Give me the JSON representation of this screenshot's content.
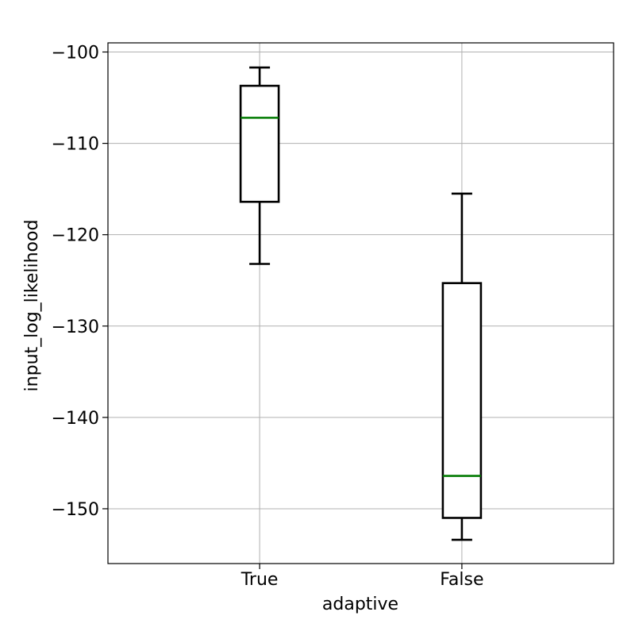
{
  "chart_data": {
    "type": "boxplot",
    "xlabel": "adaptive",
    "ylabel": "input_log_likelihood",
    "categories": [
      "True",
      "False"
    ],
    "ylim": [
      -156,
      -99
    ],
    "yticks": [
      -100,
      -110,
      -120,
      -130,
      -140,
      -150
    ],
    "grid": true,
    "boxes": [
      {
        "category": "True",
        "whisker_low": -123.2,
        "q1": -116.4,
        "median": -107.2,
        "q3": -103.7,
        "whisker_high": -101.7
      },
      {
        "category": "False",
        "whisker_low": -153.4,
        "q1": -151.0,
        "median": -146.4,
        "q3": -125.3,
        "whisker_high": -115.5
      }
    ],
    "colors": {
      "box": "#000000",
      "median": "#007a00",
      "grid": "#b0b0b0"
    }
  }
}
